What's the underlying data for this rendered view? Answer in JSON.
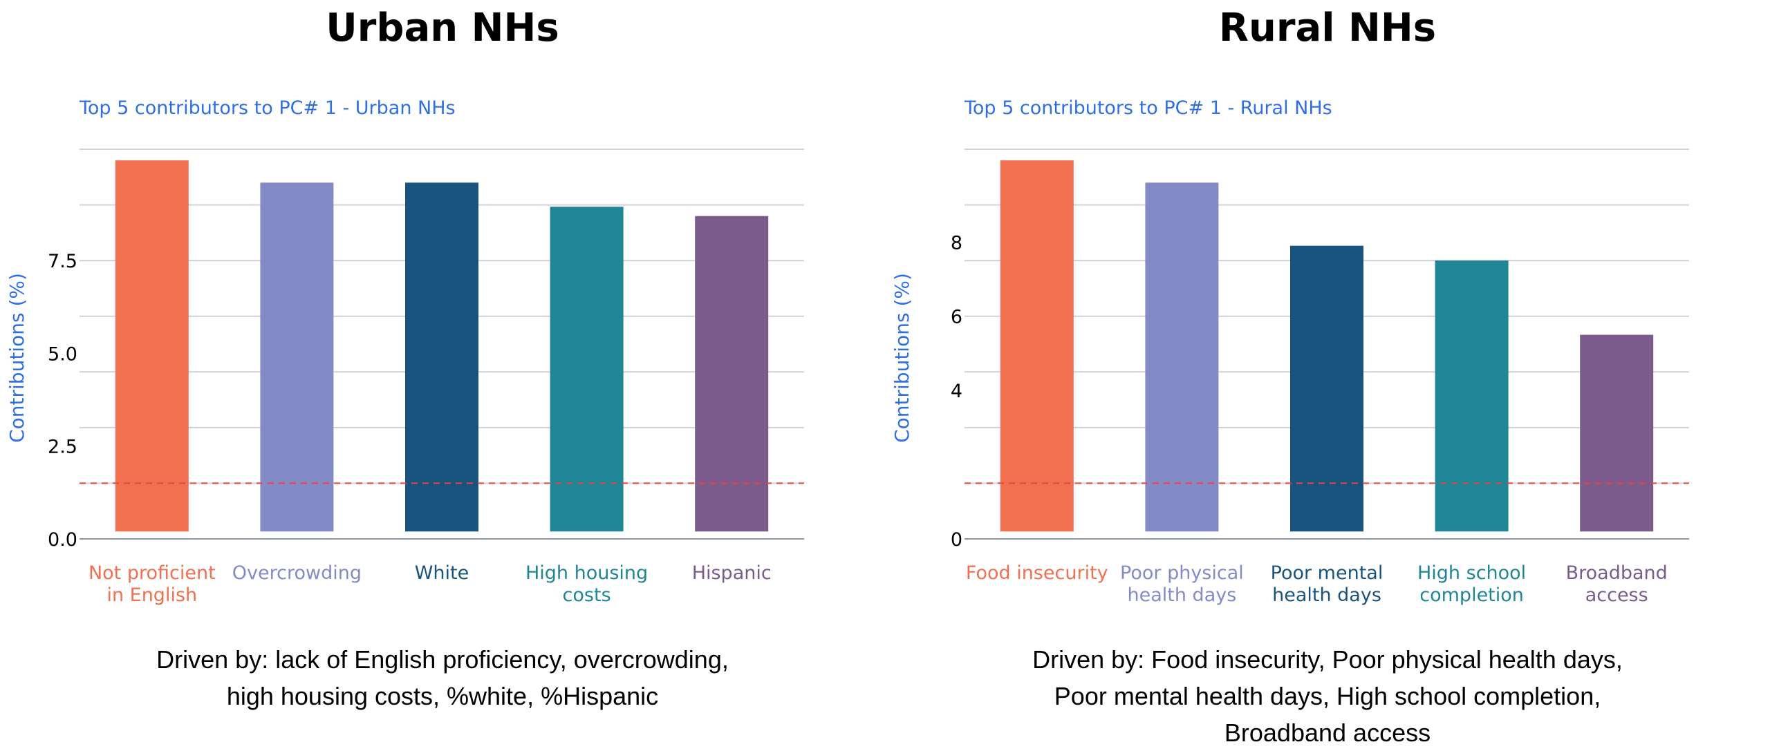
{
  "panels": [
    {
      "heading": "Urban NHs",
      "caption_lines": [
        "Driven by: lack of English proficiency, overcrowding,",
        "high housing costs, %white, %Hispanic"
      ]
    },
    {
      "heading": "Rural NHs",
      "caption_lines": [
        "Driven by: Food insecurity, Poor physical health days,",
        "Poor mental health days, High school completion,",
        "Broadband access"
      ]
    }
  ],
  "colors": {
    "bars": [
      "#f07050",
      "#838bc7",
      "#19547e",
      "#1e8696",
      "#7b5b8c"
    ],
    "title_blue": "#2f6fe4",
    "grid": "#d3d0d8",
    "threshold": "#e8453c"
  },
  "chart_data": [
    {
      "type": "bar",
      "title": "Top 5 contributors to PC# 1 - Urban NHs",
      "ylabel": "Contributions (%)",
      "categories": [
        [
          "Not proficient",
          "in English"
        ],
        [
          "Overcrowding"
        ],
        [
          "White"
        ],
        [
          "High housing",
          "costs"
        ],
        [
          "Hispanic"
        ]
      ],
      "values": [
        10.2,
        9.6,
        9.6,
        8.95,
        8.7
      ],
      "base": 0.2,
      "ylim": [
        0,
        10.5
      ],
      "yticks": [
        0,
        2.5,
        5.0,
        7.5
      ],
      "ytick_labels": [
        "0.0",
        "2.5",
        "5.0",
        "7.5"
      ],
      "gridlines": [
        0,
        1.5,
        3.0,
        4.5,
        6.0,
        7.5,
        9.0,
        10.5
      ],
      "threshold": 1.5,
      "grid": true
    },
    {
      "type": "bar",
      "title": "Top 5 contributors to PC# 1 - Rural NHs",
      "ylabel": "Contributions (%)",
      "categories": [
        [
          "Food insecurity"
        ],
        [
          "Poor physical",
          "health days"
        ],
        [
          "Poor mental",
          "health days"
        ],
        [
          "High school",
          "completion"
        ],
        [
          "Broadband",
          "access"
        ]
      ],
      "values": [
        10.2,
        9.6,
        7.9,
        7.5,
        5.5
      ],
      "base": 0.2,
      "ylim": [
        0,
        10.5
      ],
      "yticks": [
        0,
        4,
        6,
        8
      ],
      "ytick_labels": [
        "0",
        "4",
        "6",
        "8"
      ],
      "gridlines": [
        0,
        1.5,
        3.0,
        4.5,
        6.0,
        7.5,
        9.0,
        10.5
      ],
      "threshold": 1.5,
      "grid": true
    }
  ]
}
